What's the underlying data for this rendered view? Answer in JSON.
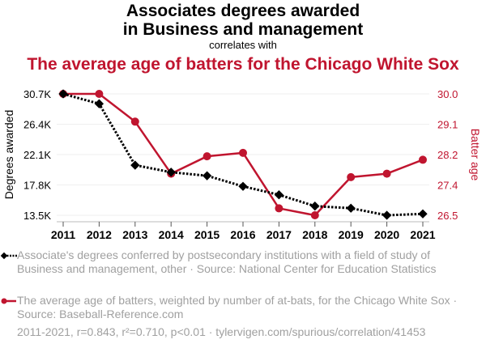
{
  "titles": {
    "main_line1": "Associates degrees awarded",
    "main_line2": "in Business and management",
    "connector": "correlates with",
    "secondary": "The average age of batters for the Chicago White Sox"
  },
  "legend": {
    "series1": "Associate's degrees conferred by postsecondary institutions with a field of study of Business and management, other · Source: National Center for Education Statistics",
    "series2": "The average age of batters, weighted by number of at-bats, for the Chicago White Sox · Source: Baseball-Reference.com"
  },
  "footer": "2011-2021, r=0.843, r²=0.710, p<0.01 · tylervigen.com/spurious/correlation/41453",
  "colors": {
    "series1": "#000000",
    "series2": "#c0152f",
    "legend_text": "#a0a0a0",
    "grid": "#efefef"
  },
  "chart_data": {
    "type": "line",
    "title": "Associates degrees awarded in Business and management correlates with The average age of batters for the Chicago White Sox",
    "x": [
      "2011",
      "2012",
      "2013",
      "2014",
      "2015",
      "2016",
      "2017",
      "2018",
      "2019",
      "2020",
      "2021"
    ],
    "series": [
      {
        "name": "Associate's degrees conferred by postsecondary institutions with a field of study of Business and management, other",
        "axis": "left",
        "style": "dotted-diamond",
        "values": [
          30.7,
          29.3,
          20.6,
          19.6,
          19.1,
          17.6,
          16.4,
          14.8,
          14.5,
          13.5,
          13.7
        ],
        "unit": "K"
      },
      {
        "name": "The average age of batters, weighted by number of at-bats, for the Chicago White Sox",
        "axis": "right",
        "style": "solid-circle",
        "values": [
          30.0,
          30.0,
          29.2,
          27.7,
          28.2,
          28.3,
          26.7,
          26.5,
          27.6,
          27.7,
          28.1
        ]
      }
    ],
    "ylabel_left": "Degrees awarded",
    "ylabel_right": "Batter age",
    "yticks_left": [
      "13.5K",
      "17.8K",
      "22.1K",
      "26.4K",
      "30.7K"
    ],
    "yticks_left_values": [
      13.5,
      17.8,
      22.1,
      26.4,
      30.7
    ],
    "yticks_right": [
      "26.5",
      "27.4",
      "28.2",
      "29.1",
      "30.0"
    ],
    "yticks_right_values": [
      26.5,
      27.375,
      28.25,
      29.125,
      30.0
    ],
    "ylim_left": [
      13.5,
      30.7
    ],
    "ylim_right": [
      26.5,
      30.0
    ],
    "grid": true,
    "legend_position": "bottom"
  }
}
